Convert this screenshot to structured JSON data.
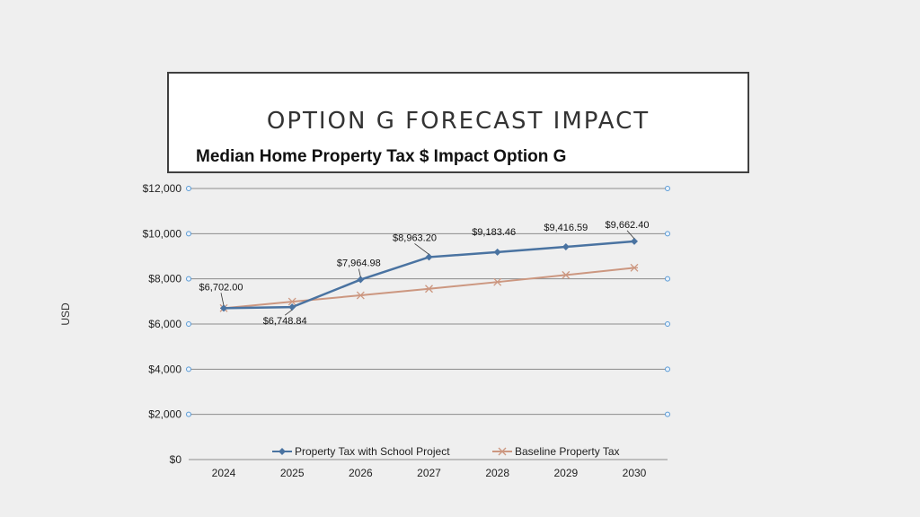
{
  "slide": {
    "title": "OPTION G FORECAST IMPACT"
  },
  "colors": {
    "background": "#efefef",
    "series_school": "#4a73a1",
    "series_baseline": "#cc9780",
    "gridline": "#8c8c8c",
    "endpoint": "#5b9bd5"
  },
  "chart_data": {
    "type": "line",
    "title": "Median Home Property Tax $ Impact Option G",
    "xlabel": "",
    "ylabel": "USD",
    "categories": [
      "2024",
      "2025",
      "2026",
      "2027",
      "2028",
      "2029",
      "2030"
    ],
    "ylim": [
      0,
      12000
    ],
    "yticks": [
      0,
      2000,
      4000,
      6000,
      8000,
      10000,
      12000
    ],
    "ytick_labels": [
      "$0",
      "$2,000",
      "$4,000",
      "$6,000",
      "$8,000",
      "$10,000",
      "$12,000"
    ],
    "grid": true,
    "legend_position": "bottom",
    "series": [
      {
        "name": "Property Tax with School Project",
        "marker": "diamond",
        "values": [
          6702.0,
          6748.84,
          7964.98,
          8963.2,
          9183.46,
          9416.59,
          9662.4
        ],
        "labels": [
          "$6,702.00",
          "$6,748.84",
          "$7,964.98",
          "$8,963.20",
          "$9,183.46",
          "$9,416.59",
          "$9,662.40"
        ]
      },
      {
        "name": "Baseline Property Tax",
        "marker": "asterisk",
        "values": [
          6702,
          6990,
          7270,
          7560,
          7860,
          8170,
          8490
        ]
      }
    ]
  }
}
